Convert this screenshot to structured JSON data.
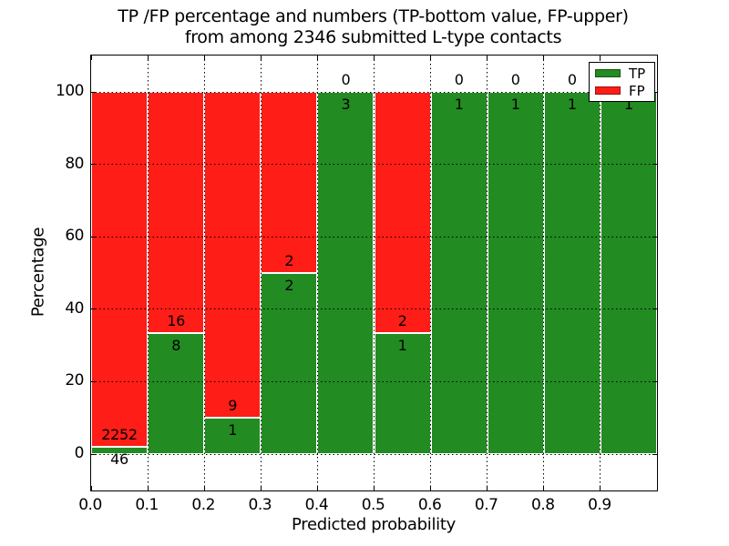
{
  "chart_data": {
    "type": "bar",
    "stacked": true,
    "title": "TP /FP percentage and numbers (TP-bottom value, FP-upper)\nfrom among 2346 submitted L-type contacts",
    "title_lines": [
      "TP /FP percentage and numbers (TP-bottom value, FP-upper)",
      "from among 2346 submitted L-type contacts"
    ],
    "total_submitted": 2346,
    "xlabel": "Predicted probability",
    "ylabel": "Percentage",
    "xlim": [
      0.0,
      1.0
    ],
    "ylim": [
      -10,
      110
    ],
    "x_ticks": [
      "0.0",
      "0.1",
      "0.2",
      "0.3",
      "0.4",
      "0.5",
      "0.6",
      "0.7",
      "0.8",
      "0.9"
    ],
    "y_ticks": [
      "0",
      "20",
      "40",
      "60",
      "80",
      "100"
    ],
    "y_tick_values": [
      0,
      20,
      40,
      60,
      80,
      100
    ],
    "grid": true,
    "colors": {
      "tp": "#228b22",
      "fp": "#fe1d17",
      "text": "#000000",
      "background": "#ffffff"
    },
    "legend": {
      "position": "upper right",
      "entries": [
        {
          "label": "TP",
          "color": "#228b22"
        },
        {
          "label": "FP",
          "color": "#fe1d17"
        }
      ]
    },
    "bins": [
      {
        "range": "0.0-0.1",
        "tp": 46,
        "fp": 2252,
        "tp_pct": 2.0
      },
      {
        "range": "0.1-0.2",
        "tp": 8,
        "fp": 16,
        "tp_pct": 33.33
      },
      {
        "range": "0.2-0.3",
        "tp": 1,
        "fp": 9,
        "tp_pct": 10.0
      },
      {
        "range": "0.3-0.4",
        "tp": 2,
        "fp": 2,
        "tp_pct": 50.0
      },
      {
        "range": "0.4-0.5",
        "tp": 3,
        "fp": 0,
        "tp_pct": 100.0
      },
      {
        "range": "0.5-0.6",
        "tp": 1,
        "fp": 2,
        "tp_pct": 33.33
      },
      {
        "range": "0.6-0.7",
        "tp": 1,
        "fp": 0,
        "tp_pct": 100.0
      },
      {
        "range": "0.7-0.8",
        "tp": 1,
        "fp": 0,
        "tp_pct": 100.0
      },
      {
        "range": "0.8-0.9",
        "tp": 1,
        "fp": 0,
        "tp_pct": 100.0
      },
      {
        "range": "0.9-1.0",
        "tp": 1,
        "fp": 0,
        "tp_pct": 100.0
      }
    ]
  }
}
